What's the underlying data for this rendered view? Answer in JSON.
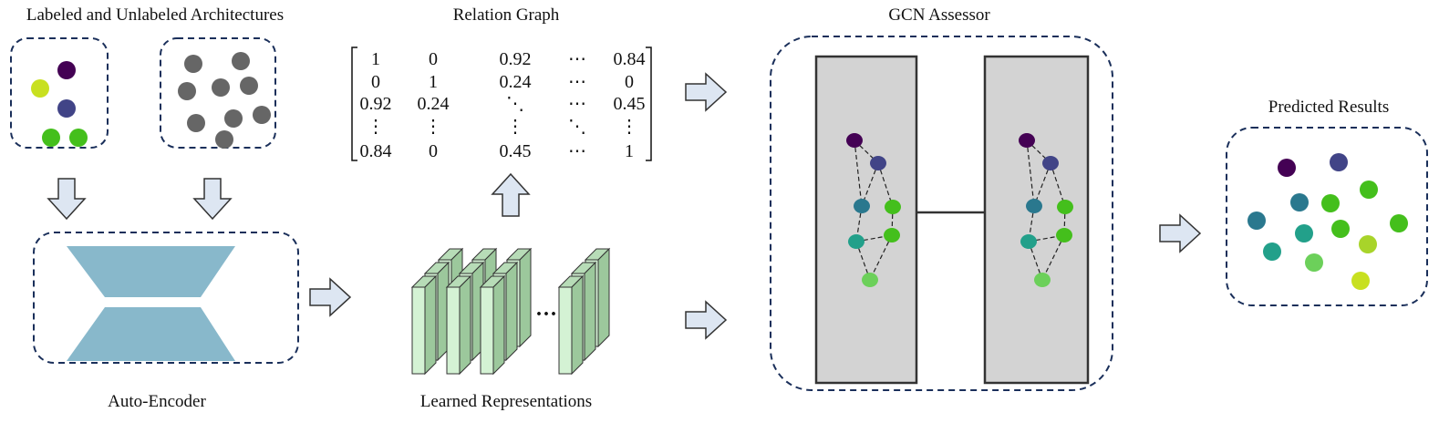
{
  "labels": {
    "architectures": "Labeled and Unlabeled Architectures",
    "relation_graph": "Relation Graph",
    "gcn_assessor": "GCN Assessor",
    "predicted_results": "Predicted Results",
    "auto_encoder": "Auto-Encoder",
    "learned_representations": "Learned Representations",
    "ellipsis": "···"
  },
  "matrix": [
    [
      "1",
      "0",
      "0.92",
      "⋯",
      "0.84"
    ],
    [
      "0",
      "1",
      "0.24",
      "⋯",
      "0"
    ],
    [
      "0.92",
      "0.24",
      "⋱",
      "⋯",
      "0.45"
    ],
    [
      "⋮",
      "⋮",
      "⋮",
      "⋱",
      "⋮"
    ],
    [
      "0.84",
      "0",
      "0.45",
      "⋯",
      "1"
    ]
  ],
  "colors": {
    "purple": "#440154",
    "indigo": "#414487",
    "blue": "#2a788e",
    "teal": "#22a08a",
    "green": "#44bf1c",
    "lightgreen": "#6cd05a",
    "yellowgreen": "#a8d42a",
    "yellow": "#c8e020",
    "gray": "#666666",
    "encoder": "#88b8cb",
    "bar": "#d4f2d4"
  }
}
